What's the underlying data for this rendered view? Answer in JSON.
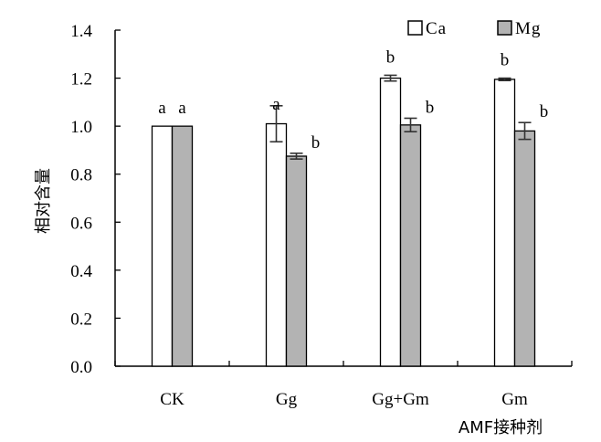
{
  "chart_data": {
    "type": "bar",
    "categories": [
      "CK",
      "Gg",
      "Gg+Gm",
      "Gm"
    ],
    "series": [
      {
        "name": "Ca",
        "values": [
          1.0,
          1.01,
          1.2,
          1.195
        ],
        "errors": [
          0.0,
          0.075,
          0.012,
          0.005
        ],
        "labels": [
          "a",
          "a",
          "b",
          "b"
        ],
        "color": "#ffffff"
      },
      {
        "name": "Mg",
        "values": [
          1.0,
          0.875,
          1.005,
          0.98
        ],
        "errors": [
          0.0,
          0.012,
          0.028,
          0.035
        ],
        "labels": [
          "a",
          "b",
          "b",
          "b"
        ],
        "color": "#b3b3b3"
      }
    ],
    "title": "",
    "xlabel": "AMF接种剂",
    "ylabel": "相对含量",
    "ylim": [
      0,
      1.4
    ],
    "yticks": [
      "0.0",
      "0.2",
      "0.4",
      "0.6",
      "0.8",
      "1.0",
      "1.2",
      "1.4"
    ],
    "grid": false,
    "legend_position": "top-right"
  }
}
